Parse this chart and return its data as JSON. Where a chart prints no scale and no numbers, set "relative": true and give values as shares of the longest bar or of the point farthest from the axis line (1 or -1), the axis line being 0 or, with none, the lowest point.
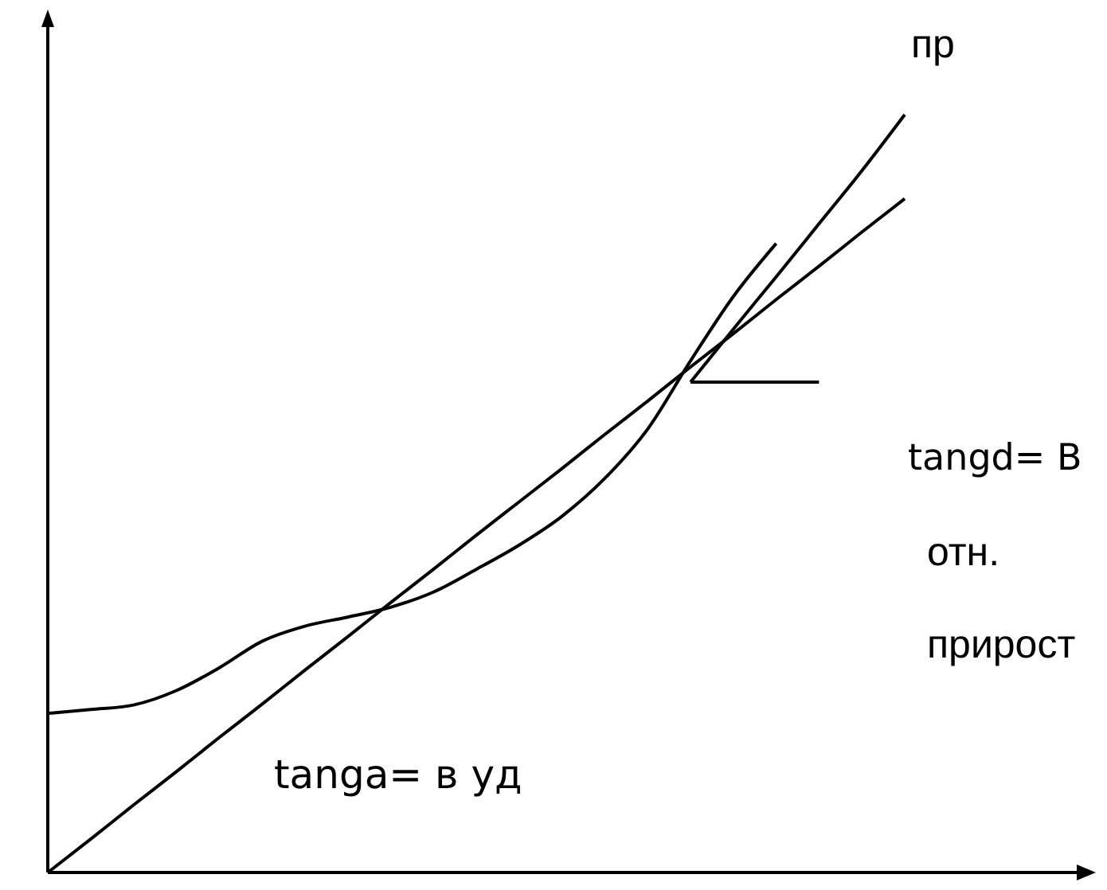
{
  "chart_data": {
    "type": "line",
    "relative": true,
    "categories": [
      null,
      null,
      null,
      null,
      null,
      null,
      null,
      null,
      null,
      null,
      null,
      null,
      null,
      null,
      null,
      null,
      null,
      null,
      null,
      null,
      null
    ],
    "annotations": [
      "пр",
      "tangd= B",
      "отн.",
      "прирост",
      "tanga= в уд"
    ],
    "series": [
      {
        "color": "#000000",
        "values": [
          0.21,
          0.215,
          0.221,
          0.24,
          0.27,
          0.305,
          0.325,
          0.337,
          0.35,
          0.37,
          0.4,
          0.432,
          0.47,
          0.52,
          0.585,
          0.675,
          0.76,
          0.83,
          null,
          null,
          null
        ]
      },
      {
        "color": "#000000",
        "values": [
          0,
          0.044,
          0.089,
          0.133,
          0.178,
          0.222,
          0.267,
          0.311,
          0.356,
          0.4,
          0.445,
          0.489,
          0.533,
          0.578,
          0.622,
          0.667,
          0.711,
          0.756,
          0.8,
          0.845,
          0.889
        ]
      },
      {
        "color": "#000000",
        "values": [
          null,
          null,
          null,
          null,
          null,
          null,
          null,
          null,
          null,
          null,
          null,
          null,
          null,
          null,
          null,
          0.647,
          0.717,
          0.786,
          0.856,
          0.926,
          1
        ]
      },
      {
        "color": "#000000",
        "values": [
          null,
          null,
          null,
          null,
          null,
          null,
          null,
          null,
          null,
          null,
          null,
          null,
          null,
          null,
          null,
          0.647,
          0.647,
          0.647,
          0.647,
          null,
          null
        ]
      }
    ]
  }
}
